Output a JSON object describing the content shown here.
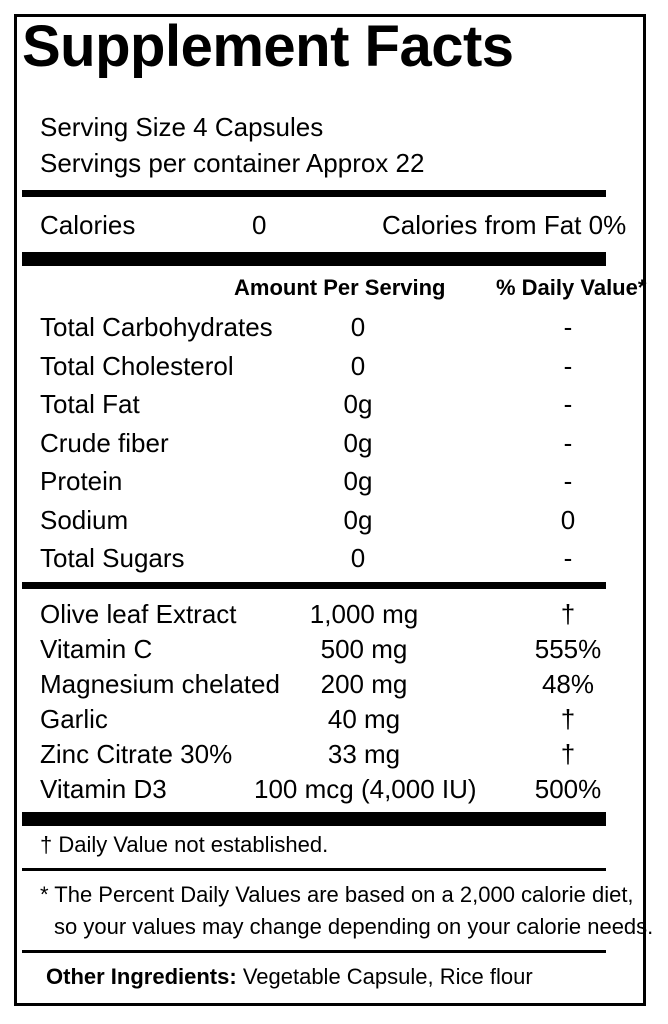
{
  "title": "Supplement Facts",
  "serving_size": "Serving Size 4 Capsules",
  "servings_per_container": "Servings per container Approx 22",
  "calories": {
    "label": "Calories",
    "value": "0",
    "from_fat": "Calories from Fat 0%"
  },
  "columns": {
    "amount": "Amount Per Serving",
    "daily_value": "% Daily Value*"
  },
  "nutrients": [
    {
      "name": "Total Carbohydrates",
      "amount": "0",
      "dv": "-"
    },
    {
      "name": "Total Cholesterol",
      "amount": "0",
      "dv": "-"
    },
    {
      "name": "Total Fat",
      "amount": "0g",
      "dv": "-"
    },
    {
      "name": "Crude fiber",
      "amount": "0g",
      "dv": "-"
    },
    {
      "name": "Protein",
      "amount": "0g",
      "dv": "-"
    },
    {
      "name": "Sodium",
      "amount": "0g",
      "dv": "0"
    },
    {
      "name": "Total Sugars",
      "amount": "0",
      "dv": "-"
    }
  ],
  "ingredients": [
    {
      "name": "Olive leaf Extract",
      "amount": "1,000 mg",
      "dv": "†"
    },
    {
      "name": "Vitamin C",
      "amount": "500 mg",
      "dv": "555%"
    },
    {
      "name": "Magnesium chelated",
      "amount": "200 mg",
      "dv": "48%"
    },
    {
      "name": "Garlic",
      "amount": "40 mg",
      "dv": "†"
    },
    {
      "name": "Zinc Citrate 30%",
      "amount": "33 mg",
      "dv": "†"
    },
    {
      "name": "Vitamin D3",
      "amount": "100 mcg  (4,000 IU)",
      "dv": "500%"
    }
  ],
  "footnote_dagger": "† Daily Value not established.",
  "footnote_percent_1": "* The Percent Daily Values are based on a 2,000 calorie diet,",
  "footnote_percent_2": "so your values may change depending on your calorie needs.",
  "other_ingredients": {
    "label": "Other Ingredients:",
    "value": "Vegetable Capsule, Rice flour"
  }
}
